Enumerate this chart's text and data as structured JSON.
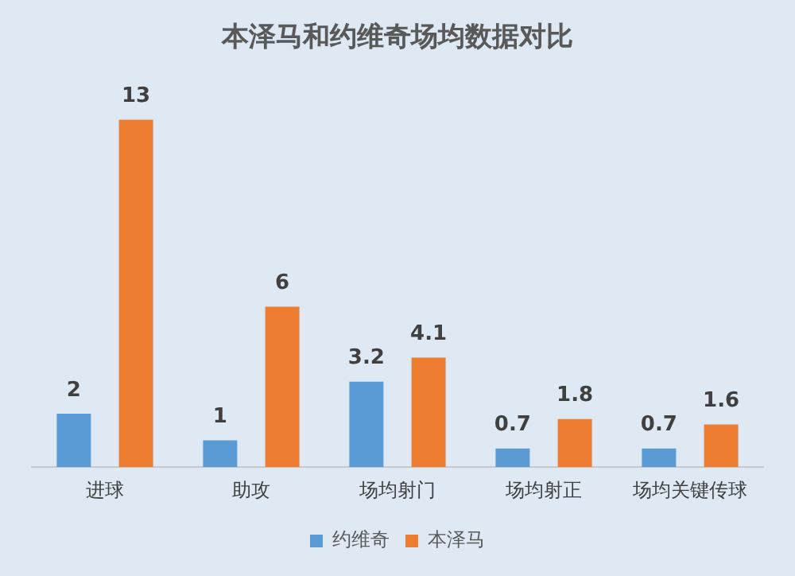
{
  "chart_data": {
    "type": "bar",
    "title": "本泽马和约维奇场均数据对比",
    "categories": [
      "进球",
      "助攻",
      "场均射门",
      "场均射正",
      "场均关键传球"
    ],
    "series": [
      {
        "name": "约维奇",
        "color": "#5b9bd5",
        "values": [
          2,
          1,
          3.2,
          0.7,
          0.7
        ]
      },
      {
        "name": "本泽马",
        "color": "#ed7d31",
        "values": [
          13,
          6,
          4.1,
          1.8,
          1.6
        ]
      }
    ],
    "data_labels": true,
    "legend": "bottom",
    "grid": false,
    "tick_labels": "x"
  }
}
